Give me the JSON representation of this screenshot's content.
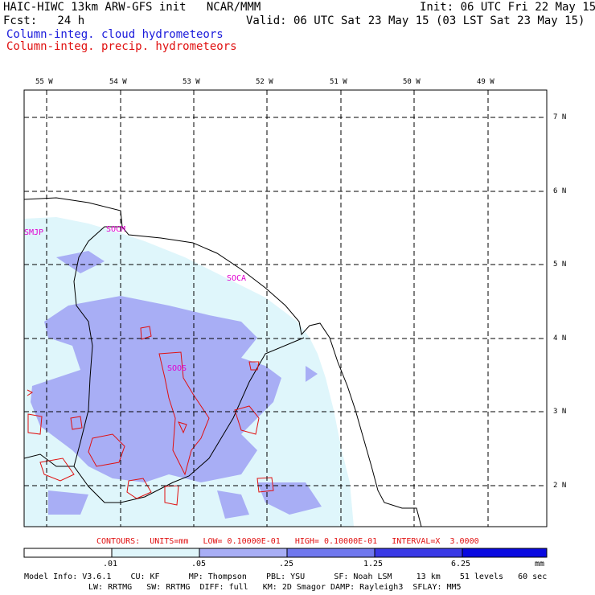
{
  "header": {
    "title_left": "HAIC-HIWC 13km ARW-GFS init   NCAR/MMM",
    "fcst": "Fcst:   24 h",
    "init": "Init: 06 UTC Fri 22 May 15",
    "valid": "Valid: 06 UTC Sat 23 May 15 (03 LST Sat 23 May 15)",
    "field_cloud": "Column-integ. cloud hydrometeors",
    "field_precip": "Column-integ. precip. hydrometeors"
  },
  "colors": {
    "cloud_label": "#1a1adb",
    "precip_label": "#e01010",
    "shade_1": "#dff6fb",
    "shade_2": "#a8aef5",
    "shade_3": "#7078ee",
    "shade_4": "#3a3ae6",
    "shade_5": "#0a0ae0",
    "station": "#e000d0"
  },
  "map": {
    "lon_labels": [
      "55 W",
      "54 W",
      "53 W",
      "52 W",
      "51 W",
      "50 W",
      "49 W"
    ],
    "lat_labels": [
      "7 N",
      "6 N",
      "5 N",
      "4 N",
      "3 N",
      "2 N"
    ],
    "stations": [
      "SMJP",
      "SOCM",
      "SOCA",
      "SOOS"
    ]
  },
  "legend": {
    "contour_line": "CONTOURS:  UNITS=mm   LOW= 0.10000E-01   HIGH= 0.10000E-01   INTERVAL=X  3.0000",
    "ticks": [
      ".01",
      ".05",
      ".25",
      "1.25",
      "6.25"
    ],
    "units": "mm"
  },
  "footer": {
    "line1": "Model Info: V3.6.1    CU: KF      MP: Thompson    PBL: YSU      SF: Noah LSM     13 km    51 levels   60 sec",
    "line2": "LW: RRTMG   SW: RRTMG  DIFF: full   KM: 2D Smagor DAMP: Rayleigh3  SFLAY: MM5"
  }
}
